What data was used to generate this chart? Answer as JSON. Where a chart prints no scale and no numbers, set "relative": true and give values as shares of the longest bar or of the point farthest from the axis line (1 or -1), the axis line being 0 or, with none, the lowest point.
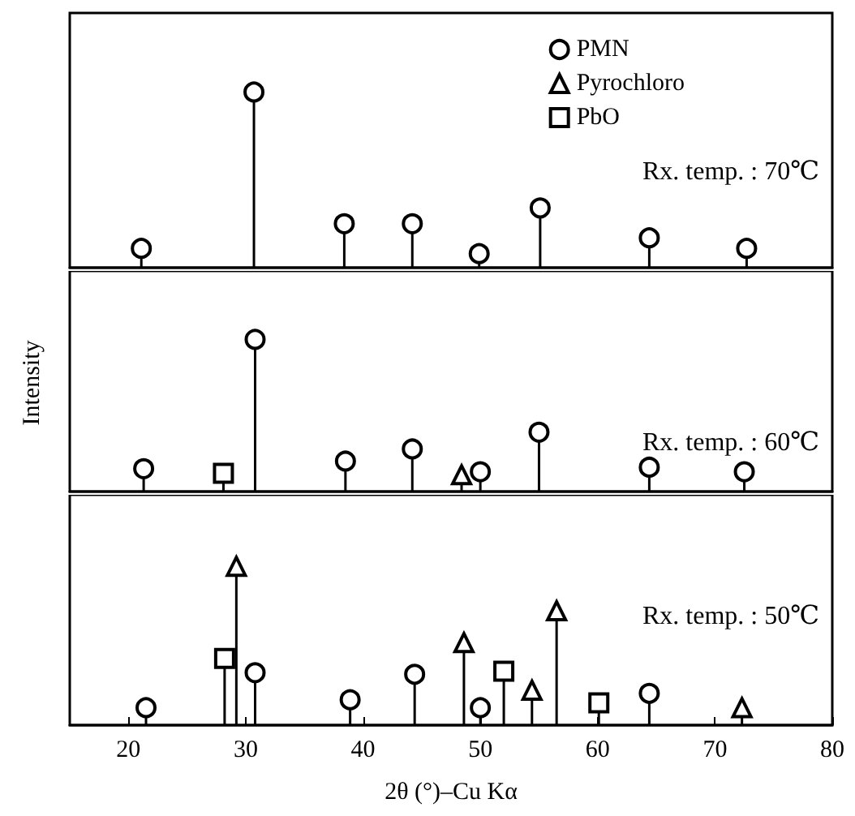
{
  "chart_data": [
    {
      "type": "lollipop",
      "relative": true,
      "xlim": [
        15,
        80
      ],
      "xticks": [
        20,
        30,
        40,
        50,
        60,
        70,
        80
      ],
      "tick_labels": false,
      "legend": "top right",
      "annotations": [
        "Rx. temp. : 70℃"
      ],
      "series": [
        {
          "name": "PMN",
          "color": "#000000",
          "marker": "circle",
          "x": [
            21.1,
            30.7,
            38.4,
            44.2,
            49.9,
            55.1,
            64.4,
            72.7
          ],
          "values": [
            0.11,
            1,
            0.25,
            0.25,
            0.08,
            0.34,
            0.17,
            0.11
          ]
        },
        {
          "name": "Pyrochloro",
          "color": "#000000",
          "marker": "triangle"
        },
        {
          "name": "PbO",
          "color": "#000000",
          "marker": "square"
        }
      ]
    },
    {
      "type": "lollipop",
      "relative": true,
      "xlim": [
        15,
        80
      ],
      "xticks": [
        20,
        30,
        40,
        50,
        60,
        70,
        80
      ],
      "tick_labels": false,
      "ylabel": "Intensity",
      "annotations": [
        "Rx. temp. : 60℃"
      ],
      "series": [
        {
          "color": "#000000",
          "marker": "circle",
          "x": [
            21.3,
            30.8,
            38.5,
            44.2,
            50.0,
            55.0,
            64.4,
            72.5
          ],
          "values": [
            0.15,
            1,
            0.2,
            0.28,
            0.13,
            0.39,
            0.16,
            0.13
          ]
        },
        {
          "color": "#000000",
          "marker": "triangle",
          "x": [
            48.4
          ],
          "values": [
            0.11
          ]
        },
        {
          "color": "#000000",
          "marker": "square",
          "x": [
            28.1
          ],
          "values": [
            0.12
          ]
        }
      ]
    },
    {
      "type": "lollipop",
      "relative": true,
      "xlim": [
        15,
        80
      ],
      "xticks": [
        20,
        30,
        40,
        50,
        60,
        70,
        80
      ],
      "tick_labels": "x",
      "xlabel": "2θ (°)–Cu Kα",
      "annotations": [
        "Rx. temp. : 50℃"
      ],
      "series": [
        {
          "color": "#000000",
          "marker": "circle",
          "x": [
            21.5,
            30.8,
            38.9,
            44.4,
            50.0,
            64.4
          ],
          "values": [
            0.11,
            0.33,
            0.16,
            0.32,
            0.11,
            0.2
          ]
        },
        {
          "color": "#000000",
          "marker": "triangle",
          "x": [
            29.2,
            48.6,
            54.4,
            56.5,
            72.3
          ],
          "values": [
            1,
            0.52,
            0.22,
            0.72,
            0.11
          ]
        },
        {
          "color": "#000000",
          "marker": "square",
          "x": [
            28.2,
            52.0,
            60.1
          ],
          "values": [
            0.42,
            0.34,
            0.14
          ]
        }
      ]
    }
  ]
}
